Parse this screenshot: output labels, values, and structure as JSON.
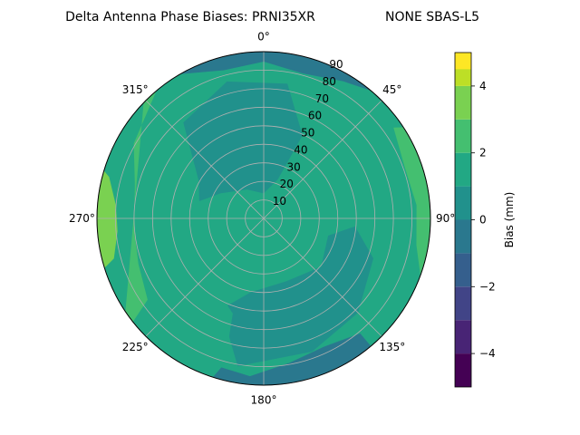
{
  "chart_data": {
    "type": "heatmap",
    "projection": "polar",
    "title": "Delta Antenna Phase Biases: PRNI35XR",
    "subtitle": "NONE SBAS-L5",
    "azimuth_tick_labels": [
      {
        "angle": 0,
        "label": "0°"
      },
      {
        "angle": 45,
        "label": "45°"
      },
      {
        "angle": 90,
        "label": "90°"
      },
      {
        "angle": 135,
        "label": "135°"
      },
      {
        "angle": 180,
        "label": "180°"
      },
      {
        "angle": 225,
        "label": "225°"
      },
      {
        "angle": 270,
        "label": "270°"
      },
      {
        "angle": 315,
        "label": "315°"
      }
    ],
    "radial_ticks": [
      10,
      20,
      30,
      40,
      50,
      60,
      70,
      80,
      90
    ],
    "radial_range": [
      0,
      90
    ],
    "grid": true,
    "colorbar": {
      "label": "Bias (mm)",
      "range": [
        -5,
        5
      ],
      "levels": [
        -5,
        -4.5,
        -4,
        -3,
        -2.5,
        -2,
        -1.5,
        -1,
        -0.5,
        0,
        0.5,
        1,
        1.5,
        2,
        3,
        4,
        4.5,
        5
      ],
      "colors": [
        "#440154",
        "#482475",
        "#414487",
        "#355f8d",
        "#2a788e",
        "#21918c",
        "#22a884",
        "#44bf70",
        "#7ad151",
        "#bddf26",
        "#fde725"
      ],
      "bands": [
        -5,
        -4,
        -3,
        -2,
        -1,
        0,
        1,
        2,
        3,
        4,
        5
      ],
      "tick_labels": [
        "−4",
        "−2",
        "0",
        "2",
        "4"
      ],
      "tick_values": [
        -4,
        -2,
        0,
        2,
        4
      ]
    },
    "regions": [
      {
        "name": "north-band",
        "value": -1.2
      },
      {
        "name": "south-band",
        "value": -1.8
      },
      {
        "name": "west-edge",
        "value": 2.5
      },
      {
        "name": "west-inner",
        "value": 1.5
      },
      {
        "name": "east-edge",
        "value": 1.5
      },
      {
        "name": "sw-inner",
        "value": 0.6
      },
      {
        "name": "nw-inner",
        "value": -0.7
      },
      {
        "name": "se-inner",
        "value": -0.8
      },
      {
        "name": "background",
        "value": 0.3
      }
    ]
  }
}
